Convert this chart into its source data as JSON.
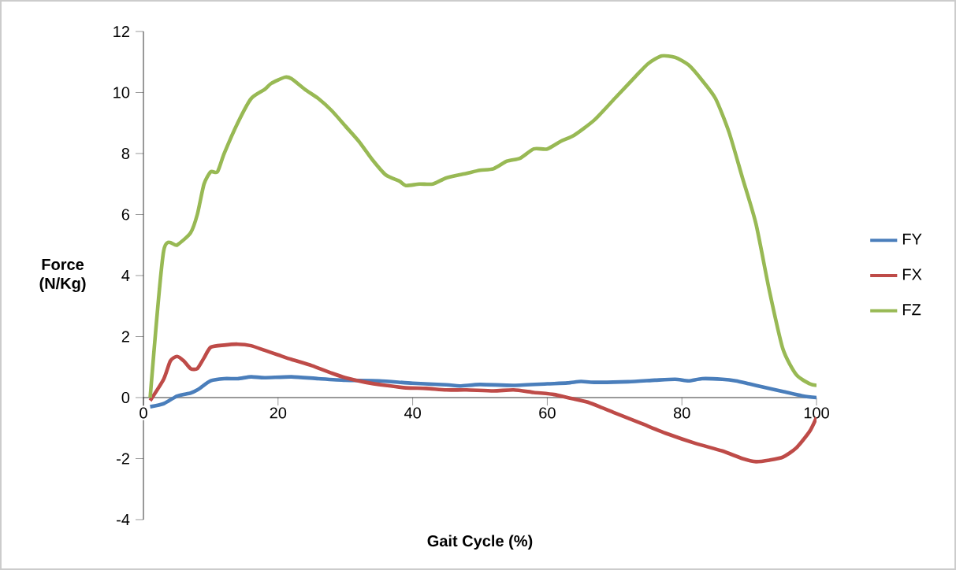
{
  "chart_data": {
    "type": "line",
    "xlabel": "Gait Cycle (%)",
    "ylabel": "Force (N/Kg)",
    "xlim": [
      0,
      100
    ],
    "ylim": [
      -4,
      12
    ],
    "xticks": [
      0,
      20,
      40,
      60,
      80,
      100
    ],
    "yticks": [
      -4,
      -2,
      0,
      2,
      4,
      6,
      8,
      10,
      12
    ],
    "legend": "right",
    "series": [
      {
        "name": "FY",
        "color": "#4a7ebb",
        "x": [
          1,
          3,
          5,
          7,
          8,
          10,
          12,
          14,
          16,
          18,
          22,
          26,
          30,
          35,
          40,
          45,
          47,
          50,
          55,
          60,
          63,
          65,
          67,
          72,
          76,
          79,
          81,
          83,
          86,
          88,
          90,
          92,
          95,
          98,
          100
        ],
        "values": [
          -0.3,
          -0.2,
          0.05,
          0.15,
          0.25,
          0.55,
          0.62,
          0.62,
          0.68,
          0.65,
          0.68,
          0.62,
          0.57,
          0.55,
          0.47,
          0.42,
          0.38,
          0.43,
          0.4,
          0.45,
          0.48,
          0.53,
          0.5,
          0.52,
          0.57,
          0.6,
          0.55,
          0.62,
          0.6,
          0.55,
          0.45,
          0.35,
          0.2,
          0.05,
          0.0
        ]
      },
      {
        "name": "FX",
        "color": "#be4b48",
        "x": [
          1,
          3,
          4,
          5,
          6,
          7,
          8,
          9,
          10,
          12,
          14,
          16,
          18,
          20,
          22,
          25,
          28,
          30,
          33,
          36,
          39,
          42,
          45,
          48,
          52,
          55,
          58,
          61,
          63,
          66,
          70,
          74,
          78,
          82,
          86,
          89,
          91,
          93,
          95,
          97,
          99,
          100
        ],
        "values": [
          -0.1,
          0.6,
          1.2,
          1.35,
          1.2,
          0.95,
          0.95,
          1.3,
          1.65,
          1.72,
          1.75,
          1.7,
          1.55,
          1.4,
          1.25,
          1.05,
          0.8,
          0.65,
          0.5,
          0.4,
          0.32,
          0.3,
          0.25,
          0.25,
          0.22,
          0.25,
          0.17,
          0.1,
          0.0,
          -0.15,
          -0.5,
          -0.85,
          -1.2,
          -1.5,
          -1.75,
          -2.0,
          -2.1,
          -2.05,
          -1.95,
          -1.65,
          -1.1,
          -0.65
        ]
      },
      {
        "name": "FZ",
        "color": "#98b954",
        "x": [
          1,
          3,
          5,
          7,
          8,
          9,
          10,
          11,
          12,
          14,
          16,
          18,
          19,
          21,
          22,
          24,
          26,
          28,
          30,
          32,
          34,
          36,
          38,
          39,
          41,
          43,
          45,
          48,
          50,
          52,
          54,
          56,
          58,
          60,
          62,
          64,
          67,
          70,
          73,
          75,
          77,
          79,
          81,
          83,
          85,
          87,
          89,
          91,
          93,
          95,
          97,
          99,
          100
        ],
        "values": [
          0,
          4.8,
          5.0,
          5.4,
          6.0,
          7.0,
          7.4,
          7.4,
          8.0,
          9.0,
          9.8,
          10.1,
          10.3,
          10.5,
          10.45,
          10.1,
          9.8,
          9.4,
          8.9,
          8.4,
          7.8,
          7.3,
          7.1,
          6.95,
          7.0,
          7.0,
          7.2,
          7.35,
          7.45,
          7.5,
          7.75,
          7.85,
          8.15,
          8.15,
          8.4,
          8.6,
          9.1,
          9.8,
          10.5,
          10.95,
          11.2,
          11.15,
          10.9,
          10.4,
          9.8,
          8.7,
          7.2,
          5.7,
          3.5,
          1.6,
          0.75,
          0.45,
          0.4
        ]
      }
    ]
  }
}
